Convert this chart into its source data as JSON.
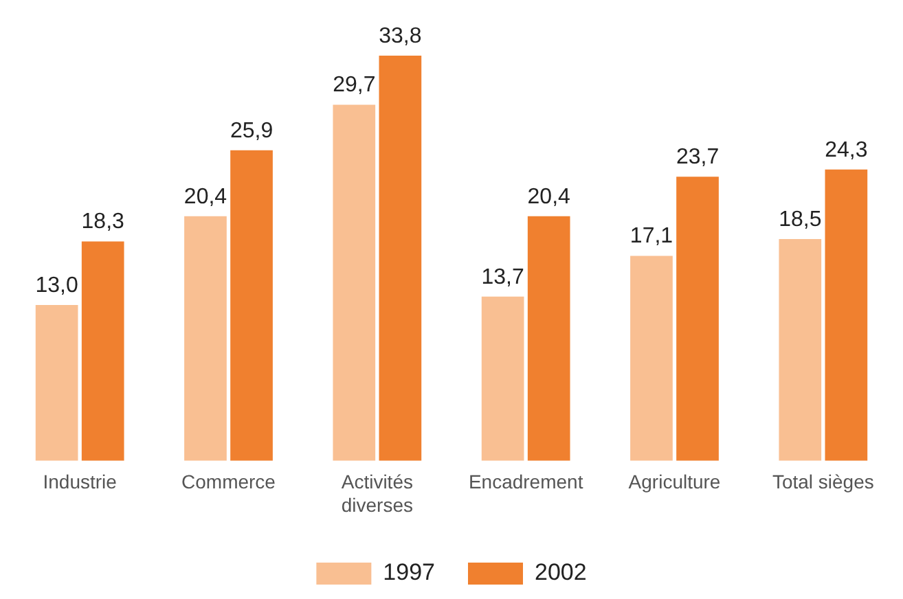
{
  "chart_data": {
    "type": "bar",
    "categories": [
      "Industrie",
      "Commerce",
      "Activités diverses",
      "Encadrement",
      "Agriculture",
      "Total sièges"
    ],
    "series": [
      {
        "name": "1997",
        "color": "#f9bf92",
        "values": [
          13.0,
          20.4,
          29.7,
          13.7,
          17.1,
          18.5
        ],
        "value_labels": [
          "13,0",
          "20,4",
          "29,7",
          "13,7",
          "17,1",
          "18,5"
        ]
      },
      {
        "name": "2002",
        "color": "#f0802f",
        "values": [
          18.3,
          25.9,
          33.8,
          20.4,
          23.7,
          24.3
        ],
        "value_labels": [
          "18,3",
          "25,9",
          "33,8",
          "20,4",
          "23,7",
          "24,3"
        ]
      }
    ],
    "grid": false,
    "legend": "bottom"
  }
}
